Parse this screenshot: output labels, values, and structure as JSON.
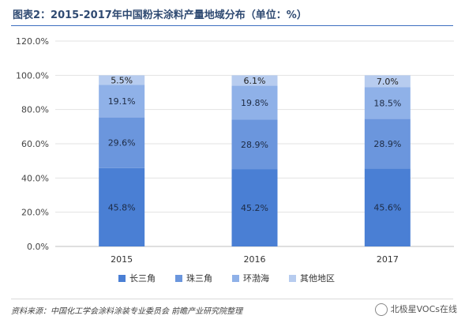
{
  "title": "图表2：2015-2017年中国粉末涂料产量地域分布（单位：%）",
  "source": "资料来源：中国化工学会涂料涂装专业委员会 前瞻产业研究院整理",
  "watermark": "北极星VOCs在线",
  "chart_data": {
    "type": "bar",
    "stacked": true,
    "categories": [
      "2015",
      "2016",
      "2017"
    ],
    "series": [
      {
        "name": "长三角",
        "values": [
          45.8,
          45.2,
          45.6
        ],
        "color": "#4a7fd4"
      },
      {
        "name": "珠三角",
        "values": [
          29.6,
          28.9,
          28.9
        ],
        "color": "#6b96dd"
      },
      {
        "name": "环渤海",
        "values": [
          19.1,
          19.8,
          18.5
        ],
        "color": "#8fb1e8"
      },
      {
        "name": "其他地区",
        "values": [
          5.5,
          6.1,
          7.0
        ],
        "color": "#b7ccef"
      }
    ],
    "ylim": [
      0,
      120
    ],
    "yticks": [
      "0.0%",
      "20.0%",
      "40.0%",
      "60.0%",
      "80.0%",
      "100.0%",
      "120.0%"
    ],
    "grid": true,
    "legend": "bottom"
  }
}
